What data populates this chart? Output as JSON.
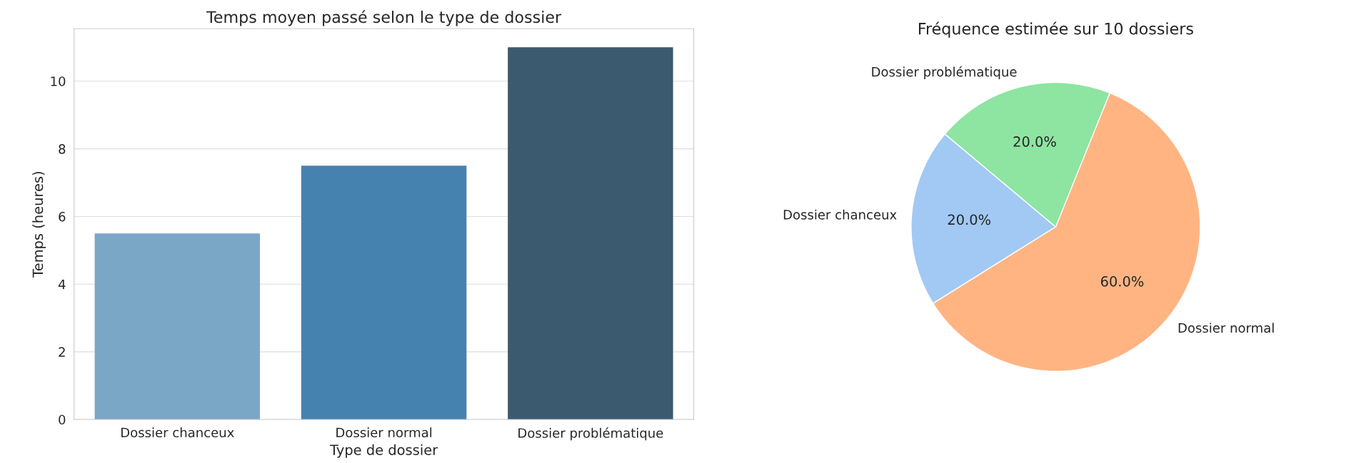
{
  "chart_data": [
    {
      "type": "bar",
      "title": "Temps moyen passé selon le type de dossier",
      "xlabel": "Type de dossier",
      "ylabel": "Temps (heures)",
      "categories": [
        "Dossier chanceux",
        "Dossier normal",
        "Dossier problématique"
      ],
      "values": [
        5.5,
        7.5,
        11
      ],
      "colors": [
        "#7ba7c7",
        "#4682b0",
        "#3b5a6f"
      ],
      "ylim": [
        0,
        11.55
      ],
      "yticks": [
        0,
        2,
        4,
        6,
        8,
        10
      ],
      "grid": "y"
    },
    {
      "type": "pie",
      "title": "Fréquence estimée sur 10 dossiers",
      "categories": [
        "Dossier chanceux",
        "Dossier normal",
        "Dossier problématique"
      ],
      "values": [
        20,
        60,
        20
      ],
      "colors": [
        "#a1c9f4",
        "#ffb482",
        "#8de5a1"
      ],
      "value_labels": [
        "20.0%",
        "60.0%",
        "20.0%"
      ]
    }
  ]
}
